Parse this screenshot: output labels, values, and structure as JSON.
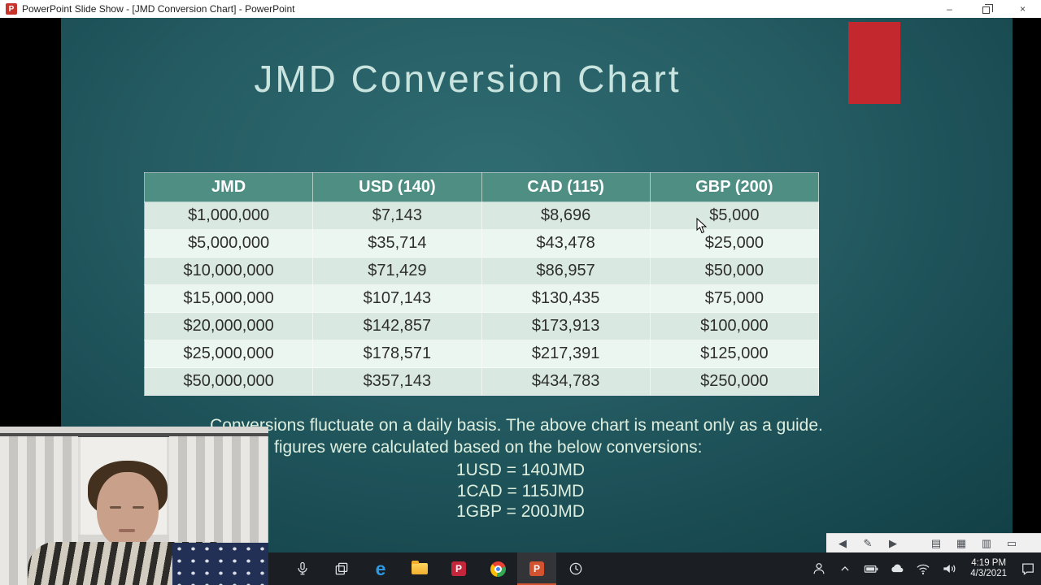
{
  "window": {
    "title": "PowerPoint Slide Show - [JMD Conversion Chart] - PowerPoint",
    "app_icon_letter": "P",
    "controls": {
      "minimize": "–",
      "maximize": "restore",
      "close": "×"
    }
  },
  "slide": {
    "title": "JMD Conversion Chart",
    "table": {
      "headers": [
        "JMD",
        "USD (140)",
        "CAD (115)",
        "GBP (200)"
      ],
      "rows": [
        [
          "$1,000,000",
          "$7,143",
          "$8,696",
          "$5,000"
        ],
        [
          "$5,000,000",
          "$35,714",
          "$43,478",
          "$25,000"
        ],
        [
          "$10,000,000",
          "$71,429",
          "$86,957",
          "$50,000"
        ],
        [
          "$15,000,000",
          "$107,143",
          "$130,435",
          "$75,000"
        ],
        [
          "$20,000,000",
          "$142,857",
          "$173,913",
          "$100,000"
        ],
        [
          "$25,000,000",
          "$178,571",
          "$217,391",
          "$125,000"
        ],
        [
          "$50,000,000",
          "$357,143",
          "$434,783",
          "$250,000"
        ]
      ]
    },
    "notes_line1": "Conversions fluctuate on a daily basis. The above chart is meant only as a guide.",
    "notes_line2": "figures were calculated based on the below conversions:",
    "conversions": [
      "1USD = 140JMD",
      "1CAD = 115JMD",
      "1GBP = 200JMD"
    ]
  },
  "slideshow_controls": {
    "items": [
      {
        "name": "previous-slide",
        "glyph": "◀"
      },
      {
        "name": "pen",
        "glyph": "✎"
      },
      {
        "name": "next-slide",
        "glyph": "▶"
      },
      {
        "name": "notes",
        "glyph": "▤"
      },
      {
        "name": "see-all-slides",
        "glyph": "▦"
      },
      {
        "name": "zoom",
        "glyph": "▥"
      },
      {
        "name": "display-settings",
        "glyph": "▭"
      }
    ]
  },
  "taskbar": {
    "powerpoint_letter": "P",
    "edge_letter": "e",
    "clock": {
      "time": "4:19 PM",
      "date": "4/3/2021"
    }
  },
  "colors": {
    "slide_teal": "#245c63",
    "table_header": "#4f8e83",
    "row_odd": "#d9e9e1",
    "row_even": "#ecf6f0",
    "accent_red": "#c2282e",
    "taskbar": "#1b1e22"
  }
}
